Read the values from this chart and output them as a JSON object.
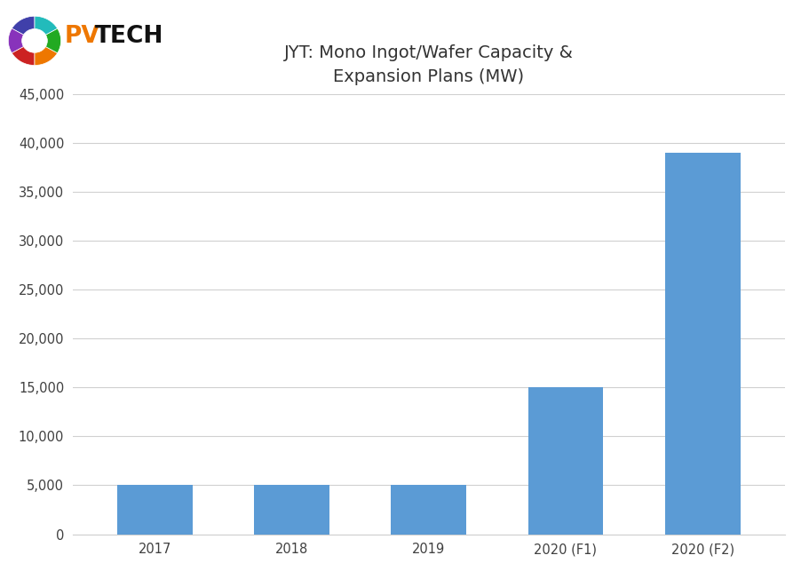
{
  "categories": [
    "2017",
    "2018",
    "2019",
    "2020 (F1)",
    "2020 (F2)"
  ],
  "values": [
    5000,
    5000,
    5000,
    15000,
    39000
  ],
  "bar_color": "#5b9bd5",
  "title_line1": "JYT: Mono Ingot/Wafer Capacity &",
  "title_line2": "Expansion Plans (MW)",
  "title_fontsize": 14,
  "ylim": [
    0,
    45000
  ],
  "yticks": [
    0,
    5000,
    10000,
    15000,
    20000,
    25000,
    30000,
    35000,
    40000,
    45000
  ],
  "background_color": "#ffffff",
  "grid_color": "#d0d0d0",
  "tick_label_fontsize": 10.5,
  "bar_width": 0.55,
  "logo_ring_colors": [
    "#4040aa",
    "#8833bb",
    "#cc2222",
    "#ee7700",
    "#22aa22",
    "#22bbbb"
  ],
  "logo_pv_color": "#ee7700",
  "logo_tech_color": "#111111"
}
